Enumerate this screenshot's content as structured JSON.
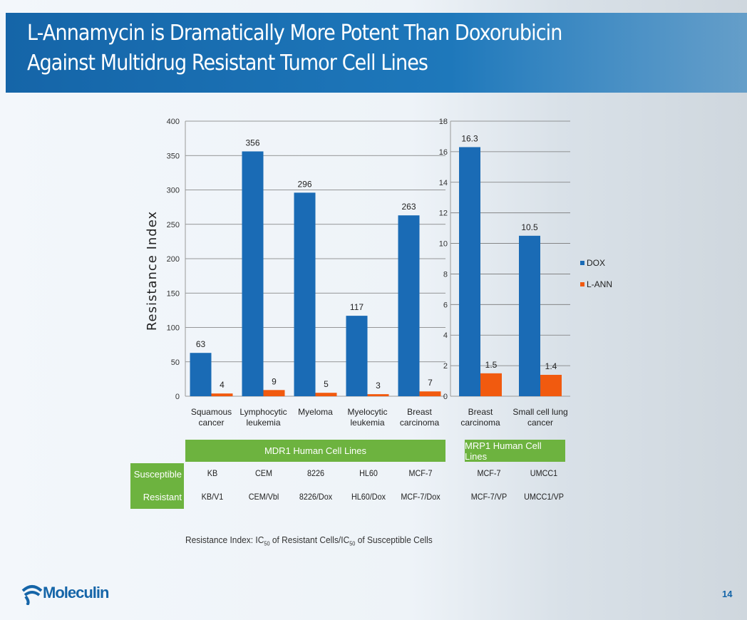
{
  "slide": {
    "title_line1": "L-Annamycin is Dramatically More Potent Than Doxorubicin",
    "title_line2": "Against Multidrug Resistant Tumor Cell Lines",
    "page_number": "14",
    "logo_text": "Moleculin",
    "note_prefix": "Resistance Index: IC",
    "note_sub": "50",
    "note_mid": " of Resistant Cells/IC",
    "note_sub2": "50",
    "note_suffix": " of Susceptible Cells"
  },
  "chart_data": [
    {
      "type": "bar",
      "ylabel": "Resistance Index",
      "ylim": [
        0,
        400
      ],
      "yticks": [
        0,
        50,
        100,
        150,
        200,
        250,
        300,
        350,
        400
      ],
      "grid": true,
      "categories": [
        "Squamous\ncancer",
        "Lymphocytic\nleukemia",
        "Myeloma",
        "Myelocytic\nleukemia",
        "Breast\ncarcinoma"
      ],
      "series": [
        {
          "name": "DOX",
          "color": "#1a6bb5",
          "values": [
            63,
            356,
            296,
            117,
            263
          ]
        },
        {
          "name": "L-ANN",
          "color": "#f15a0f",
          "values": [
            4,
            9,
            5,
            3,
            7
          ]
        }
      ]
    },
    {
      "type": "bar",
      "ylim": [
        0,
        18
      ],
      "yticks": [
        0,
        2,
        4,
        6,
        8,
        10,
        12,
        14,
        16,
        18
      ],
      "grid": true,
      "categories": [
        "Breast\ncarcinoma",
        "Small cell lung\ncancer"
      ],
      "series": [
        {
          "name": "DOX",
          "color": "#1a6bb5",
          "values": [
            16.3,
            10.5
          ]
        },
        {
          "name": "L-ANN",
          "color": "#f15a0f",
          "values": [
            1.5,
            1.4
          ]
        }
      ],
      "legend": "right"
    }
  ],
  "table": {
    "group1": "MDR1 Human Cell Lines",
    "group2": "MRP1 Human Cell Lines",
    "row1_label": "Susceptible",
    "row2_label": "Resistant",
    "susceptible": [
      "KB",
      "CEM",
      "8226",
      "HL60",
      "MCF-7",
      "MCF-7",
      "UMCC1"
    ],
    "resistant": [
      "KB/V1",
      "CEM/Vbl",
      "8226/Dox",
      "HL60/Dox",
      "MCF-7/Dox",
      "MCF-7/VP",
      "UMCC1/VP"
    ]
  }
}
